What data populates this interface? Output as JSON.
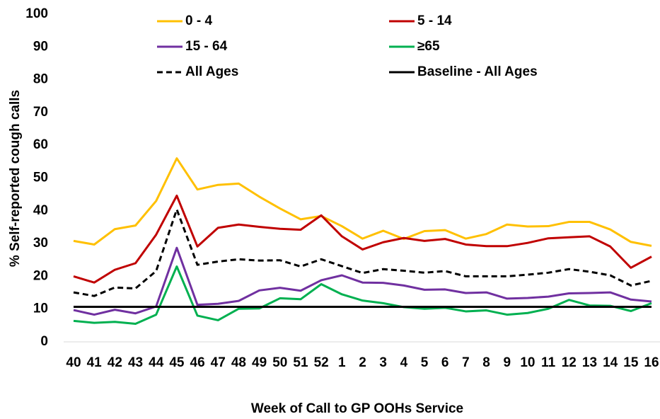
{
  "chart_data": {
    "type": "line",
    "y_label": "% Self-reported cough calls",
    "x_label": "Week of Call to GP OOHs Service",
    "categories": [
      "40",
      "41",
      "42",
      "43",
      "44",
      "45",
      "46",
      "47",
      "48",
      "49",
      "50",
      "51",
      "52",
      "1",
      "2",
      "3",
      "4",
      "5",
      "6",
      "7",
      "8",
      "9",
      "10",
      "11",
      "12",
      "13",
      "14",
      "15",
      "16"
    ],
    "ylim": [
      0,
      100
    ],
    "yticks": [
      0,
      10,
      20,
      30,
      40,
      50,
      60,
      70,
      80,
      90,
      100
    ],
    "grid": false,
    "series": [
      {
        "name": "0 - 4",
        "color": "#ffc000",
        "dashed": false,
        "values": [
          30.8,
          29.7,
          34.4,
          35.5,
          43,
          56,
          46.5,
          47.9,
          48.3,
          44.3,
          40.7,
          37.4,
          38.4,
          35.3,
          31.5,
          33.9,
          31.4,
          33.8,
          34.1,
          31.5,
          32.9,
          35.8,
          35.2,
          35.3,
          36.6,
          36.6,
          34.3,
          30.5,
          29.3
        ]
      },
      {
        "name": "5 - 14",
        "color": "#c00000",
        "dashed": false,
        "values": [
          20,
          18.1,
          22,
          24,
          32.7,
          44.6,
          29.1,
          34.8,
          35.8,
          35.1,
          34.5,
          34.2,
          38.6,
          32.2,
          28.2,
          30.4,
          31.7,
          30.8,
          31.4,
          29.7,
          29.2,
          29.2,
          30.2,
          31.6,
          31.9,
          32.2,
          29.1,
          22.6,
          26
        ]
      },
      {
        "name": "15 - 64",
        "color": "#7030a0",
        "dashed": false,
        "values": [
          9.7,
          8.3,
          9.8,
          8.7,
          10.8,
          28.7,
          11.3,
          11.6,
          12.5,
          15.7,
          16.5,
          15.6,
          18.8,
          20.3,
          18.1,
          18,
          17.2,
          15.9,
          16,
          14.9,
          15.1,
          13.2,
          13.4,
          13.8,
          14.8,
          14.9,
          15.1,
          12.9,
          12.3
        ]
      },
      {
        "name": "≥65",
        "color": "#00b050",
        "dashed": false,
        "values": [
          6.4,
          5.8,
          6.1,
          5.5,
          8.3,
          23,
          8,
          6.6,
          10.1,
          10.2,
          13.3,
          13,
          17.6,
          14.5,
          12.6,
          11.8,
          10.6,
          10.1,
          10.4,
          9.3,
          9.6,
          8.3,
          8.8,
          10.1,
          12.8,
          11.1,
          11,
          9.4,
          11.8
        ]
      },
      {
        "name": "All Ages",
        "color": "#000000",
        "dashed": true,
        "values": [
          15.1,
          14,
          16.6,
          16.3,
          21.6,
          40.4,
          23.5,
          24.5,
          25.2,
          24.8,
          24.9,
          23,
          25.2,
          23.1,
          21,
          22.2,
          21.7,
          21.1,
          21.6,
          20,
          20,
          20,
          20.5,
          21.1,
          22.2,
          21.4,
          20.3,
          17.2,
          18.6
        ]
      },
      {
        "name": "Baseline - All Ages",
        "color": "#000000",
        "dashed": false,
        "values": [
          10.7,
          10.7,
          10.7,
          10.7,
          10.7,
          10.7,
          10.7,
          10.7,
          10.7,
          10.7,
          10.7,
          10.7,
          10.7,
          10.7,
          10.7,
          10.7,
          10.7,
          10.7,
          10.7,
          10.7,
          10.7,
          10.7,
          10.7,
          10.7,
          10.7,
          10.7,
          10.7,
          10.7,
          10.7
        ]
      }
    ]
  }
}
